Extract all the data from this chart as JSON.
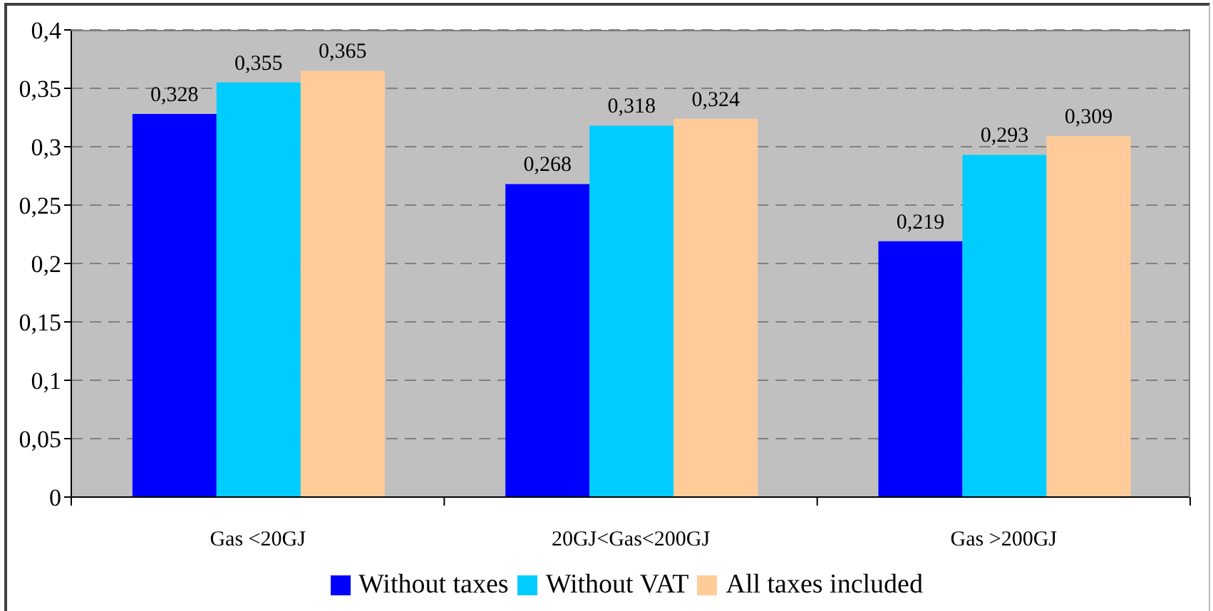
{
  "chart_data": {
    "type": "bar",
    "categories": [
      "Gas <20GJ",
      "20GJ<Gas<200GJ",
      "Gas >200GJ"
    ],
    "series": [
      {
        "name": "Without taxes",
        "color": "#0000ff",
        "values": [
          0.328,
          0.268,
          0.219
        ],
        "value_labels": [
          "0,328",
          "0,268",
          "0,219"
        ]
      },
      {
        "name": "Without VAT",
        "color": "#00ccff",
        "values": [
          0.355,
          0.318,
          0.293
        ],
        "value_labels": [
          "0,355",
          "0,318",
          "0,293"
        ]
      },
      {
        "name": "All taxes included",
        "color": "#ffcc99",
        "values": [
          0.365,
          0.324,
          0.309
        ],
        "value_labels": [
          "0,365",
          "0,324",
          "0,309"
        ]
      }
    ],
    "ylim": [
      0,
      0.4
    ],
    "yticks": [
      0,
      {
        "value": 0.05,
        "label": "0,05"
      },
      {
        "value": 0.1,
        "label": "0,1"
      },
      {
        "value": 0.15,
        "label": "0,15"
      },
      {
        "value": 0.2,
        "label": "0,2"
      },
      {
        "value": 0.25,
        "label": "0,25"
      },
      {
        "value": 0.3,
        "label": "0,3"
      },
      {
        "value": 0.35,
        "label": "0,35"
      },
      {
        "value": 0.4,
        "label": "0,4"
      }
    ],
    "grid": "y",
    "legend": "bottom"
  }
}
